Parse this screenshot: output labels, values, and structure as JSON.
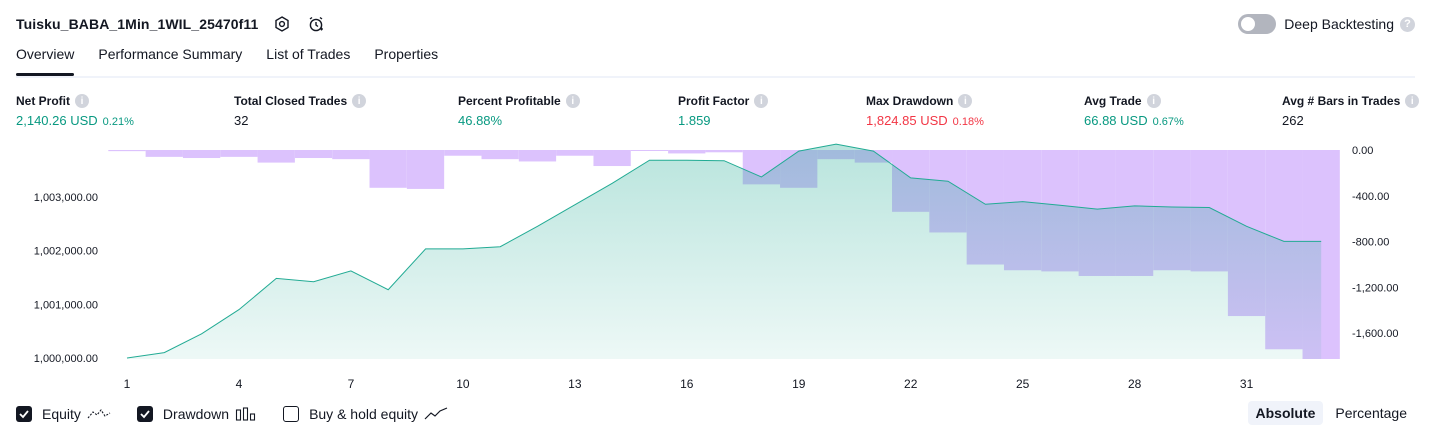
{
  "header": {
    "title": "Tuisku_BABA_1Min_1WIL_25470f11",
    "deep_backtesting_label": "Deep Backtesting",
    "help_glyph": "?"
  },
  "tabs": [
    {
      "label": "Overview",
      "active": true
    },
    {
      "label": "Performance Summary",
      "active": false
    },
    {
      "label": "List of Trades",
      "active": false
    },
    {
      "label": "Properties",
      "active": false
    }
  ],
  "metrics": {
    "net_profit": {
      "label": "Net Profit",
      "value": "2,140.26 USD",
      "pct": "0.21%"
    },
    "total_closed_trades": {
      "label": "Total Closed Trades",
      "value": "32"
    },
    "percent_profitable": {
      "label": "Percent Profitable",
      "value": "46.88%"
    },
    "profit_factor": {
      "label": "Profit Factor",
      "value": "1.859"
    },
    "max_drawdown": {
      "label": "Max Drawdown",
      "value": "1,824.85 USD",
      "pct": "0.18%"
    },
    "avg_trade": {
      "label": "Avg Trade",
      "value": "66.88 USD",
      "pct": "0.67%"
    },
    "avg_bars": {
      "label": "Avg # Bars in Trades",
      "value": "262"
    }
  },
  "info_glyph": "i",
  "legend": {
    "equity": {
      "label": "Equity",
      "checked": true
    },
    "drawdown": {
      "label": "Drawdown",
      "checked": true
    },
    "buy_hold": {
      "label": "Buy & hold equity",
      "checked": false
    }
  },
  "mode": {
    "absolute": "Absolute",
    "percentage": "Percentage",
    "active": "absolute"
  },
  "colors": {
    "equity_line": "#22ab94",
    "drawdown_fill": "#dcc2fd",
    "positive": "#089981",
    "negative": "#f23645"
  },
  "chart_data": {
    "type": "area",
    "x_ticks": [
      "1",
      "4",
      "7",
      "10",
      "13",
      "16",
      "19",
      "22",
      "25",
      "28",
      "31"
    ],
    "y_left_ticks": [
      "1,000,000.00",
      "1,001,000.00",
      "1,002,000.00",
      "1,003,000.00"
    ],
    "y_right_ticks": [
      "0.00",
      "-400.00",
      "-800.00",
      "-1,200.00",
      "-1,600.00"
    ],
    "series": [
      {
        "type": "line",
        "x": [
          1,
          2,
          3,
          4,
          5,
          6,
          7,
          8,
          9,
          10,
          11,
          12,
          13,
          14,
          15,
          16,
          17,
          18,
          19,
          20,
          21,
          22,
          23,
          24,
          25,
          26,
          27,
          28,
          29,
          30,
          31,
          32,
          33
        ],
        "values": [
          1000000,
          1000100,
          1000450,
          1000900,
          1001480,
          1001420,
          1001620,
          1001270,
          1002030,
          1002030,
          1002070,
          1002450,
          1002850,
          1003250,
          1003680,
          1003680,
          1003670,
          1003370,
          1003850,
          1003980,
          1003850,
          1003350,
          1003290,
          1002860,
          1002910,
          1002840,
          1002770,
          1002830,
          1002810,
          1002800,
          1002450,
          1002170,
          1002170
        ]
      },
      {
        "type": "bar",
        "x": [
          1,
          2,
          3,
          4,
          5,
          6,
          7,
          8,
          9,
          10,
          11,
          12,
          13,
          14,
          15,
          16,
          17,
          18,
          19,
          20,
          21,
          22,
          23,
          24,
          25,
          26,
          27,
          28,
          29,
          30,
          31,
          32,
          33
        ],
        "values": [
          -10,
          -60,
          -70,
          -60,
          -110,
          -70,
          -80,
          -330,
          -340,
          -50,
          -80,
          -100,
          -50,
          -140,
          0,
          -30,
          -20,
          -300,
          -330,
          -80,
          -110,
          -540,
          -720,
          -1000,
          -1050,
          -1060,
          -1100,
          -1100,
          -1050,
          -1060,
          -1450,
          -1740,
          -1825
        ]
      }
    ],
    "ylim_left": [
      1000000,
      1004000
    ],
    "ylim_right": [
      -1825,
      0
    ],
    "grid": false
  }
}
